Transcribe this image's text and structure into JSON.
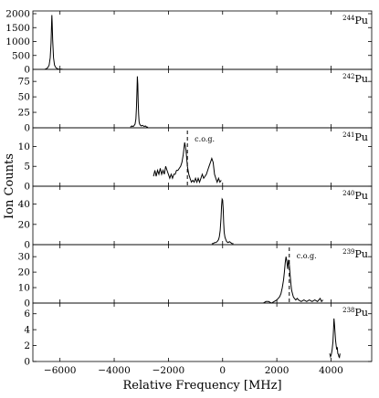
{
  "chart_data": [
    {
      "type": "line",
      "isotope": {
        "mass": "244",
        "element": "Pu"
      },
      "ylim": [
        0,
        2000
      ],
      "yticks": [
        "0",
        "500",
        "1000",
        "1500",
        "2000"
      ],
      "series": [
        {
          "x": [
            -6550,
            -6500,
            -6450,
            -6400,
            -6360,
            -6330,
            -6310,
            -6300,
            -6290,
            -6270,
            -6240,
            -6200,
            -6150,
            -6100,
            -6050,
            -6000,
            -5950,
            -5900
          ],
          "y": [
            10,
            25,
            60,
            150,
            420,
            950,
            1650,
            1950,
            1700,
            1050,
            420,
            150,
            60,
            25,
            10,
            5,
            5,
            3
          ]
        }
      ]
    },
    {
      "type": "line",
      "isotope": {
        "mass": "242",
        "element": "Pu"
      },
      "ylim": [
        0,
        90
      ],
      "yticks": [
        "0",
        "25",
        "50",
        "75"
      ],
      "series": [
        {
          "x": [
            -3400,
            -3350,
            -3300,
            -3260,
            -3230,
            -3200,
            -3180,
            -3160,
            -3145,
            -3130,
            -3115,
            -3100,
            -3080,
            -3060,
            -3030,
            -3000,
            -2950,
            -2900,
            -2850,
            -2800,
            -2750
          ],
          "y": [
            1,
            3,
            2,
            4,
            6,
            14,
            32,
            60,
            83,
            70,
            42,
            22,
            10,
            6,
            4,
            3,
            4,
            2,
            3,
            1,
            1
          ]
        }
      ]
    },
    {
      "type": "line",
      "isotope": {
        "mass": "241",
        "element": "Pu"
      },
      "ylim": [
        0,
        14
      ],
      "yticks": [
        "0",
        "5",
        "10"
      ],
      "annotation": {
        "label": "c.o.g.",
        "x": -1300
      },
      "series": [
        {
          "x": [
            -2550,
            -2500,
            -2450,
            -2400,
            -2350,
            -2300,
            -2250,
            -2200,
            -2150,
            -2100,
            -2050,
            -2000,
            -1950,
            -1900,
            -1850,
            -1800,
            -1750,
            -1700,
            -1650,
            -1600,
            -1550,
            -1500,
            -1450,
            -1400,
            -1350,
            -1300,
            -1250,
            -1200,
            -1150,
            -1100,
            -1050,
            -1000,
            -950,
            -900,
            -850,
            -800,
            -750,
            -700,
            -650,
            -600,
            -550,
            -500,
            -450,
            -400,
            -350,
            -300,
            -250,
            -200,
            -150,
            -100,
            -50
          ],
          "y": [
            2.5,
            4,
            2.5,
            4,
            3,
            4.5,
            3,
            4,
            3,
            5,
            4,
            3,
            2,
            3,
            2,
            3,
            3,
            4,
            4,
            4.5,
            5,
            6,
            8,
            11,
            9,
            5,
            3,
            2,
            1,
            1.5,
            1,
            2,
            1,
            2,
            1,
            2,
            3,
            2,
            2.5,
            3,
            4,
            5,
            6,
            7,
            6,
            3,
            2,
            1,
            2,
            1,
            1.5
          ]
        }
      ]
    },
    {
      "type": "line",
      "isotope": {
        "mass": "240",
        "element": "Pu"
      },
      "ylim": [
        0,
        55
      ],
      "yticks": [
        "0",
        "20",
        "40"
      ],
      "series": [
        {
          "x": [
            -400,
            -350,
            -300,
            -250,
            -200,
            -150,
            -120,
            -90,
            -60,
            -40,
            -20,
            0,
            20,
            40,
            60,
            90,
            120,
            150,
            200,
            250,
            300,
            350,
            400
          ],
          "y": [
            1,
            1,
            2,
            2,
            3,
            5,
            8,
            14,
            26,
            38,
            45,
            44,
            35,
            22,
            12,
            7,
            5,
            3,
            2,
            3,
            2,
            1,
            1
          ]
        }
      ]
    },
    {
      "type": "line",
      "isotope": {
        "mass": "239",
        "element": "Pu"
      },
      "ylim": [
        0,
        36
      ],
      "yticks": [
        "0",
        "10",
        "20",
        "30"
      ],
      "annotation": {
        "label": "c.o.g.",
        "x": 2460
      },
      "series": [
        {
          "x": [
            1500,
            1600,
            1700,
            1800,
            1900,
            2000,
            2050,
            2100,
            2150,
            2200,
            2250,
            2280,
            2310,
            2340,
            2370,
            2400,
            2430,
            2460,
            2490,
            2520,
            2550,
            2580,
            2610,
            2650,
            2700,
            2750,
            2800,
            2900,
            3000,
            3100,
            3200,
            3300,
            3400,
            3500,
            3600,
            3650,
            3700
          ],
          "y": [
            0,
            1,
            1,
            0,
            1,
            2,
            3,
            4,
            6,
            10,
            15,
            20,
            26,
            30,
            27,
            22,
            28,
            25,
            18,
            12,
            8,
            6,
            4,
            3,
            2,
            3,
            2,
            1,
            2,
            1,
            2,
            1,
            2,
            1,
            3,
            1,
            2
          ]
        }
      ]
    },
    {
      "type": "line",
      "isotope": {
        "mass": "238",
        "element": "Pu"
      },
      "ylim": [
        0,
        7
      ],
      "yticks": [
        "0",
        "2",
        "4",
        "6"
      ],
      "series": [
        {
          "x": [
            3950,
            3980,
            4010,
            4040,
            4070,
            4090,
            4110,
            4130,
            4150,
            4170,
            4190,
            4210,
            4230,
            4250,
            4270,
            4290,
            4310,
            4330
          ],
          "y": [
            1,
            0.6,
            0.9,
            1.5,
            2.5,
            4.0,
            5.4,
            4.6,
            3.6,
            2.6,
            2.0,
            1.5,
            1.8,
            1.0,
            0.9,
            0.6,
            0.5,
            1
          ]
        }
      ]
    }
  ],
  "xaxis": {
    "label": "Relative Frequency [MHz]",
    "xlim": [
      -7000,
      5500
    ],
    "ticks": [
      -6000,
      -4000,
      -2000,
      0,
      2000,
      4000
    ],
    "tick_labels": [
      "−6000",
      "−4000",
      "−2000",
      "0",
      "2000",
      "4000"
    ]
  },
  "yaxis": {
    "label": "Ion Counts"
  }
}
